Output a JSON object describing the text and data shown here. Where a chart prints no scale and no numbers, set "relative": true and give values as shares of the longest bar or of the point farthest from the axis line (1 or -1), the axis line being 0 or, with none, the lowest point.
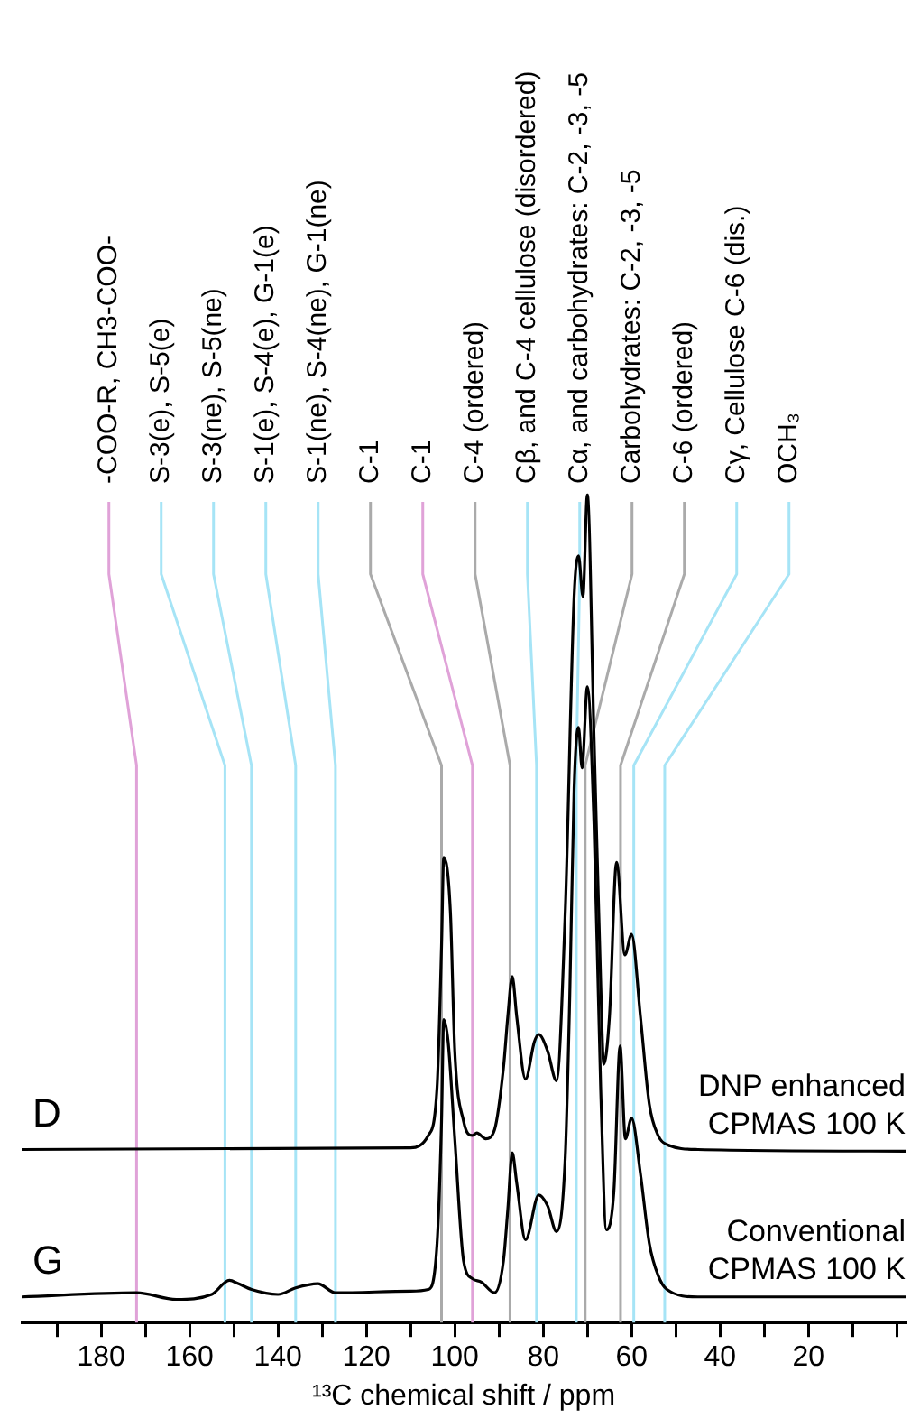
{
  "chart_data": {
    "type": "line",
    "relative": true,
    "xlabel": "¹³C chemical shift / ppm",
    "xlim": [
      198,
      -2
    ],
    "xticks": [
      {
        "value": 190,
        "label": null
      },
      180,
      {
        "value": 170,
        "label": null
      },
      160,
      {
        "value": 150,
        "label": null
      },
      140,
      {
        "value": 130,
        "label": null
      },
      120,
      {
        "value": 110,
        "label": null
      },
      100,
      {
        "value": 90,
        "label": null
      },
      80,
      {
        "value": 70,
        "label": null
      },
      60,
      {
        "value": 50,
        "label": null
      },
      40,
      {
        "value": 30,
        "label": null
      },
      20,
      {
        "value": 10,
        "label": null
      },
      {
        "value": 0,
        "label": null
      }
    ],
    "legend": false,
    "series": [
      {
        "name": "D",
        "color": "#000000",
        "x": [
          198,
          110,
          106,
          104,
          103,
          102.5,
          101,
          100,
          98,
          96,
          95,
          93,
          91,
          89,
          88,
          87,
          86,
          84,
          82,
          81,
          79,
          77,
          75,
          73,
          72,
          71,
          70,
          68.5,
          67,
          66.3,
          65,
          63.4,
          61.5,
          60,
          58,
          56,
          54,
          52,
          45,
          -2
        ],
        "values": [
          0.209,
          0.211,
          0.226,
          0.285,
          0.454,
          0.562,
          0.497,
          0.328,
          0.243,
          0.226,
          0.229,
          0.222,
          0.233,
          0.307,
          0.37,
          0.418,
          0.37,
          0.294,
          0.339,
          0.348,
          0.328,
          0.292,
          0.497,
          0.877,
          0.926,
          0.877,
          1.0,
          0.708,
          0.413,
          0.312,
          0.37,
          0.556,
          0.444,
          0.469,
          0.37,
          0.264,
          0.226,
          0.215,
          0.209,
          0.207
        ]
      },
      {
        "name": "G",
        "color": "#000000",
        "x": [
          198,
          172,
          163,
          155,
          151,
          149,
          146,
          140,
          136,
          131,
          127,
          110,
          106,
          104,
          103,
          102.5,
          101.5,
          100,
          98,
          96,
          94,
          91,
          89,
          88,
          87,
          86,
          84,
          81,
          79,
          77,
          75,
          74,
          73,
          72,
          71.2,
          70,
          68.5,
          67,
          65.7,
          64,
          62.6,
          61.4,
          60,
          58,
          56,
          54,
          52,
          45,
          -2
        ],
        "values": [
          0.031,
          0.036,
          0.028,
          0.034,
          0.051,
          0.047,
          0.04,
          0.034,
          0.042,
          0.047,
          0.036,
          0.038,
          0.04,
          0.096,
          0.243,
          0.366,
          0.339,
          0.222,
          0.074,
          0.053,
          0.049,
          0.036,
          0.074,
          0.137,
          0.205,
          0.169,
          0.1,
          0.154,
          0.141,
          0.11,
          0.201,
          0.391,
          0.645,
          0.719,
          0.67,
          0.768,
          0.602,
          0.285,
          0.112,
          0.159,
          0.334,
          0.222,
          0.247,
          0.18,
          0.096,
          0.057,
          0.04,
          0.031,
          0.031
        ]
      }
    ],
    "annotations": [
      "DNP enhanced CPMAS 100 K",
      "Conventional CPMAS 100 K"
    ],
    "ref_lines": [
      {
        "axis": "x",
        "value": 172,
        "label": "-COO-R, CH3-COO-",
        "color": "#e0a2d8"
      },
      {
        "axis": "x",
        "value": 152,
        "label": "S-3(e), S-5(e)",
        "color": "#a6e4f6"
      },
      {
        "axis": "x",
        "value": 146,
        "label": "S-3(ne), S-5(ne)",
        "color": "#a6e4f6"
      },
      {
        "axis": "x",
        "value": 136,
        "label": "S-1(e), S-4(e), G-1(e)",
        "color": "#a6e4f6"
      },
      {
        "axis": "x",
        "value": 127,
        "label": "S-1(ne), S-4(ne), G-1(ne)",
        "color": "#a6e4f6"
      },
      {
        "axis": "x",
        "value": 103,
        "label": "C-1",
        "color": "#aaaaaa"
      },
      {
        "axis": "x",
        "value": 96,
        "label": "C-1",
        "color": "#e0a2d8"
      },
      {
        "axis": "x",
        "value": 87.5,
        "label": "C-4 (ordered)",
        "color": "#aaaaaa"
      },
      {
        "axis": "x",
        "value": 81.5,
        "label": "Cβ, and C-4 cellulose (disordered)",
        "color": "#a6e4f6"
      },
      {
        "axis": "x",
        "value": 72.5,
        "label": "Cα, and carbohydrates: C-2, -3, -5",
        "color": "#a6e4f6"
      },
      {
        "axis": "x",
        "value": 70.5,
        "label": "Carbohydrates: C-2, -3, -5",
        "color": "#aaaaaa"
      },
      {
        "axis": "x",
        "value": 62.5,
        "label": "C-6 (ordered)",
        "color": "#aaaaaa"
      },
      {
        "axis": "x",
        "value": 59.5,
        "label": "Cγ, Cellulose C-6 (dis.)",
        "color": "#a6e4f6"
      },
      {
        "axis": "x",
        "value": 52.5,
        "label": "OCH₃",
        "color": "#a6e4f6"
      }
    ]
  }
}
